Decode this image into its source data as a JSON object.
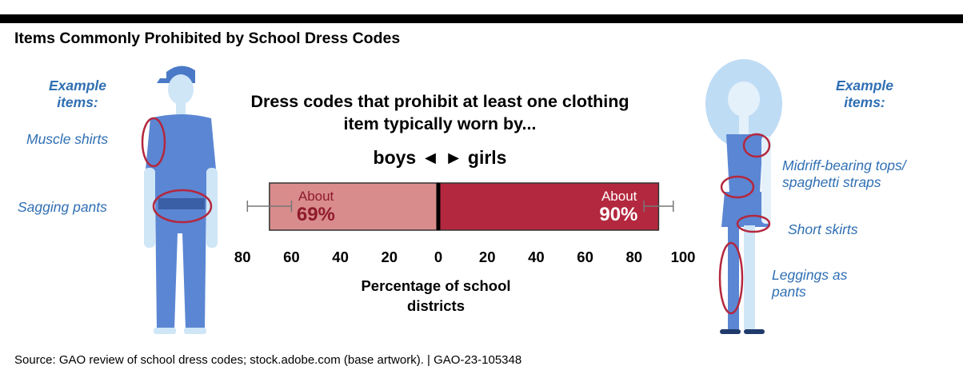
{
  "title": "Items Commonly Prohibited by School Dress Codes",
  "chart_heading": "Dress codes that prohibit at least one clothing item typically worn by...",
  "direction_label": "boys ◄ ► girls",
  "left_panel": {
    "heading": "Example items:",
    "items": [
      "Muscle shirts",
      "Sagging pants"
    ]
  },
  "right_panel": {
    "heading": "Example items:",
    "items": [
      "Midriff-bearing tops/ spaghetti straps",
      "Short skirts",
      "Leggings as pants"
    ]
  },
  "source": "Source: GAO review of school dress codes; stock.adobe.com (base artwork).  |  GAO-23-105348",
  "chart_data": {
    "type": "bar",
    "orientation": "diverging-horizontal",
    "series": [
      {
        "name": "boys",
        "value": 69,
        "label_top": "About",
        "label_value": "69%",
        "color": "#d98c8c",
        "error_low": 60,
        "error_high": 78
      },
      {
        "name": "girls",
        "value": 90,
        "label_top": "About",
        "label_value": "90%",
        "color": "#b3283e",
        "error_low": 84,
        "error_high": 96
      }
    ],
    "x_ticks": [
      "80",
      "60",
      "40",
      "20",
      "0",
      "20",
      "40",
      "60",
      "80",
      "100"
    ],
    "x_range": [
      -80,
      100
    ],
    "xlabel": "Percentage of school districts",
    "colors": {
      "boys_bar": "#d98c8c",
      "girls_bar": "#b3283e",
      "outline": "#333333",
      "accent_blue": "#2f6fb3",
      "circle": "#b3283e"
    }
  }
}
